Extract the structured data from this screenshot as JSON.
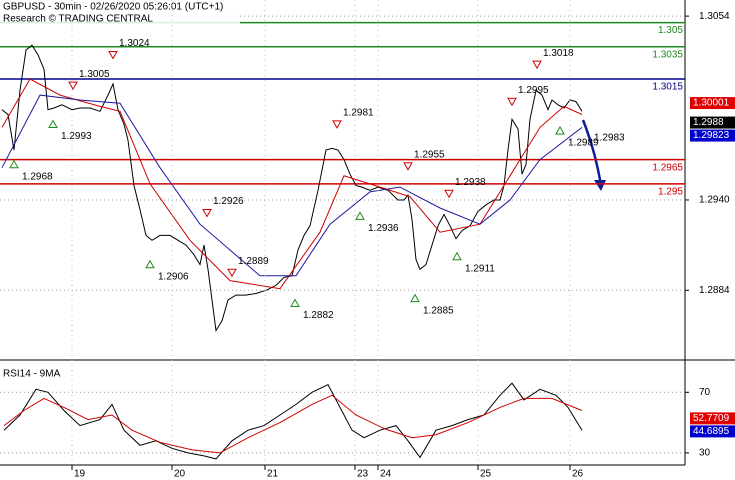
{
  "chart_data": [
    {
      "type": "line",
      "title": "GBPUSD - 30min - 02/26/2020 05:26:01 (UTC+1)",
      "subtitle": "Research © TRADING CENTRAL",
      "xlim": [
        0,
        342.5
      ],
      "ylim": [
        1.2842,
        1.3064
      ],
      "yticks": [
        1.3054,
        {
          "value": 1.294,
          "label": "1.2940"
        },
        1.2884
      ],
      "grid": true,
      "series": [
        {
          "name": "GBPUSD",
          "color": "#000000",
          "x": [
            1,
            4,
            7,
            10,
            13,
            16,
            19,
            22,
            24,
            27,
            31,
            36,
            40,
            45,
            50,
            54,
            56.5,
            59,
            62,
            64,
            67,
            70,
            73,
            76,
            80,
            85,
            89,
            93,
            97,
            100,
            102,
            104,
            106,
            108,
            111,
            114,
            118,
            123,
            128,
            133,
            138,
            142,
            146,
            149,
            152,
            155,
            159,
            163,
            166,
            169,
            172,
            175,
            178,
            181,
            185,
            189,
            194,
            199,
            202,
            204,
            206,
            208,
            210,
            213,
            216,
            219,
            222,
            225,
            228,
            231,
            235,
            239,
            243,
            247,
            250,
            252,
            254,
            256,
            259,
            261,
            263,
            265,
            268,
            271,
            274,
            276,
            279,
            282,
            285,
            288,
            291
          ],
          "values": [
            1.2996,
            1.2993,
            1.2971,
            1.3008,
            1.3033,
            1.3036,
            1.303,
            1.3021,
            1.2996,
            1.2997,
            1.2999,
            1.2996,
            1.2997,
            1.2997,
            1.2995,
            1.3005,
            1.3012,
            1.2996,
            1.2987,
            1.2977,
            1.2949,
            1.2934,
            1.2918,
            1.2915,
            1.2918,
            1.2918,
            1.2915,
            1.2912,
            1.2906,
            1.29,
            1.2912,
            1.2897,
            1.2878,
            1.2859,
            1.2865,
            1.2878,
            1.2881,
            1.2881,
            1.2882,
            1.2884,
            1.2887,
            1.2892,
            1.2893,
            1.2909,
            1.2918,
            1.2924,
            1.2946,
            1.2971,
            1.2972,
            1.2971,
            1.2965,
            1.2956,
            1.2949,
            1.2948,
            1.2946,
            1.2948,
            1.2946,
            1.294,
            1.294,
            1.2943,
            1.2928,
            1.2903,
            1.2897,
            1.29,
            1.2912,
            1.2924,
            1.2931,
            1.2924,
            1.2916,
            1.2921,
            1.2924,
            1.2933,
            1.2937,
            1.294,
            1.294,
            1.2949,
            1.2971,
            1.299,
            1.2984,
            1.2956,
            1.2962,
            1.299,
            1.3008,
            1.3005,
            1.2996,
            1.3002,
            1.2999,
            1.2997,
            1.3002,
            1.3001,
            1.2995
          ]
        },
        {
          "color": "#d00000",
          "x": [
            1,
            15,
            30,
            50,
            60,
            75,
            95,
            115,
            140,
            160,
            172,
            190,
            205,
            220,
            240,
            255,
            270,
            282,
            291
          ],
          "values": [
            1.2985,
            1.3015,
            1.3005,
            1.2998,
            1.2995,
            1.295,
            1.2915,
            1.289,
            1.2885,
            1.292,
            1.2955,
            1.2948,
            1.2942,
            1.292,
            1.2925,
            1.2955,
            1.2985,
            1.2998,
            1.2993
          ]
        },
        {
          "color": "#1a1aa0",
          "x": [
            1,
            20,
            40,
            60,
            80,
            100,
            130,
            148,
            165,
            185,
            200,
            220,
            240,
            255,
            270,
            291
          ],
          "values": [
            1.296,
            1.3005,
            1.3002,
            1.3,
            1.296,
            1.2925,
            1.2893,
            1.2893,
            1.2925,
            1.2945,
            1.2948,
            1.2935,
            1.2925,
            1.294,
            1.2965,
            1.2985
          ]
        }
      ],
      "levels": [
        {
          "value": 1.305,
          "color": "#1f8a1f"
        },
        {
          "value": 1.3035,
          "color": "#1f8a1f"
        },
        {
          "value": 1.3015,
          "color": "#00008b"
        },
        {
          "value": 1.2965,
          "color": "#d00000"
        },
        {
          "value": 1.295,
          "color": "#d00000"
        }
      ],
      "annotations": [
        {
          "x": 7,
          "value": 1.2968,
          "direction": "up"
        },
        {
          "x": 26.5,
          "value": 1.2993,
          "direction": "up"
        },
        {
          "x": 36.5,
          "value": 1.3005,
          "direction": "down"
        },
        {
          "x": 56.5,
          "value": 1.3024,
          "direction": "down"
        },
        {
          "x": 75,
          "value": 1.2906,
          "direction": "up"
        },
        {
          "x": 103.5,
          "value": 1.2926,
          "direction": "down"
        },
        {
          "x": 116,
          "value": 1.2889,
          "direction": "down"
        },
        {
          "x": 147.5,
          "value": 1.2882,
          "direction": "up"
        },
        {
          "x": 168.5,
          "value": 1.2981,
          "direction": "down"
        },
        {
          "x": 180,
          "value": 1.2936,
          "direction": "up"
        },
        {
          "x": 204,
          "value": 1.2955,
          "direction": "down"
        },
        {
          "x": 207.5,
          "value": 1.2885,
          "direction": "up"
        },
        {
          "x": 224.5,
          "value": 1.2938,
          "direction": "down"
        },
        {
          "x": 228.5,
          "value": 1.2911,
          "direction": "up"
        },
        {
          "x": 256,
          "value": 1.2995,
          "direction": "down"
        },
        {
          "x": 268.5,
          "value": 1.3018,
          "direction": "down"
        },
        {
          "x": 280,
          "value": 1.2989,
          "direction": "up"
        },
        {
          "x": 297,
          "value": 1.2983,
          "direction": "none"
        }
      ],
      "price_tags": [
        {
          "value": 1.30001,
          "color": "#e00000"
        },
        {
          "value": 1.2988,
          "color": "#000000"
        },
        {
          "value": 1.29823,
          "color": "#0000cc"
        }
      ]
    },
    {
      "type": "line",
      "title": "RSI14 - 9MA",
      "xlim": [
        0,
        342.5
      ],
      "ylim": [
        22,
        90
      ],
      "yticks": [
        70,
        30
      ],
      "grid": true,
      "xticks": [
        {
          "value": 36,
          "label": "19"
        },
        {
          "value": 86,
          "label": "20"
        },
        {
          "value": 132.5,
          "label": "21"
        },
        {
          "value": 177.5,
          "label": "23"
        },
        {
          "value": 189,
          "label": "24"
        },
        {
          "value": 239,
          "label": "25"
        },
        {
          "value": 285,
          "label": "26"
        }
      ],
      "series": [
        {
          "color": "#000000",
          "x": [
            2,
            10,
            18,
            24,
            32,
            40,
            50,
            56,
            62,
            70,
            78,
            86,
            94,
            102,
            108,
            116,
            124,
            132,
            140,
            148,
            156,
            164,
            170,
            176,
            182,
            190,
            198,
            204,
            210,
            218,
            226,
            234,
            242,
            250,
            256,
            262,
            270,
            278,
            284,
            291
          ],
          "values": [
            45,
            55,
            72,
            70,
            58,
            48,
            52,
            62,
            45,
            35,
            38,
            33,
            30,
            28,
            26,
            38,
            45,
            48,
            55,
            62,
            70,
            75,
            60,
            45,
            40,
            45,
            48,
            38,
            27,
            45,
            48,
            52,
            55,
            68,
            76,
            65,
            72,
            68,
            60,
            45
          ]
        },
        {
          "color": "#d00000",
          "x": [
            2,
            12,
            22,
            32,
            44,
            56,
            66,
            80,
            96,
            110,
            124,
            140,
            156,
            166,
            178,
            192,
            206,
            218,
            234,
            250,
            262,
            276,
            291
          ],
          "values": [
            48,
            58,
            66,
            60,
            52,
            55,
            45,
            37,
            32,
            30,
            40,
            50,
            62,
            68,
            55,
            46,
            40,
            42,
            50,
            60,
            66,
            66,
            58
          ]
        }
      ],
      "price_tags": [
        {
          "value": 52.7709,
          "color": "#e00000"
        },
        {
          "value": 44.6895,
          "color": "#0000cc"
        }
      ]
    }
  ]
}
